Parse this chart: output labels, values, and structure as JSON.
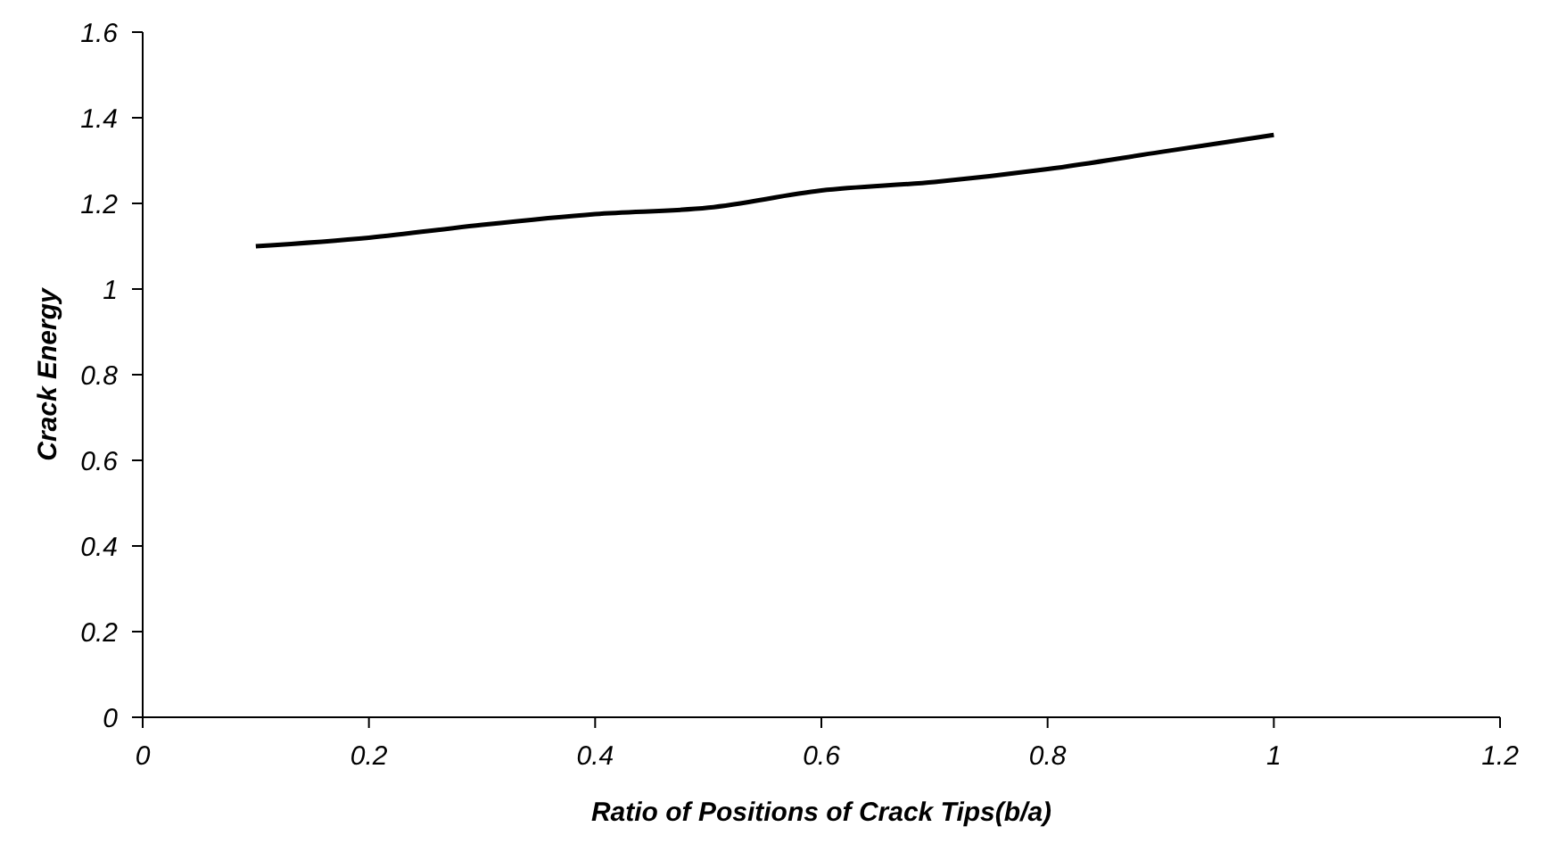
{
  "chart_data": {
    "type": "line",
    "xlabel": "Ratio of Positions of Crack Tips(b/a)",
    "ylabel": "Crack Energy",
    "x": [
      0.1,
      0.2,
      0.3,
      0.4,
      0.5,
      0.6,
      0.7,
      0.8,
      0.9,
      1.0
    ],
    "series": [
      {
        "color": "#000000",
        "values": [
          1.1,
          1.12,
          1.15,
          1.175,
          1.19,
          1.23,
          1.25,
          1.28,
          1.32,
          1.36
        ]
      }
    ],
    "xlim": [
      0,
      1.2
    ],
    "xticks": [
      0,
      0.2,
      0.4,
      0.6,
      0.8,
      1,
      1.2
    ],
    "ylim": [
      0,
      1.6
    ],
    "yticks": [
      0,
      0.2,
      0.4,
      0.6,
      0.8,
      1,
      1.2,
      1.4,
      1.6
    ],
    "grid": false,
    "legend": false,
    "marker": "none",
    "line_style": "solid"
  }
}
